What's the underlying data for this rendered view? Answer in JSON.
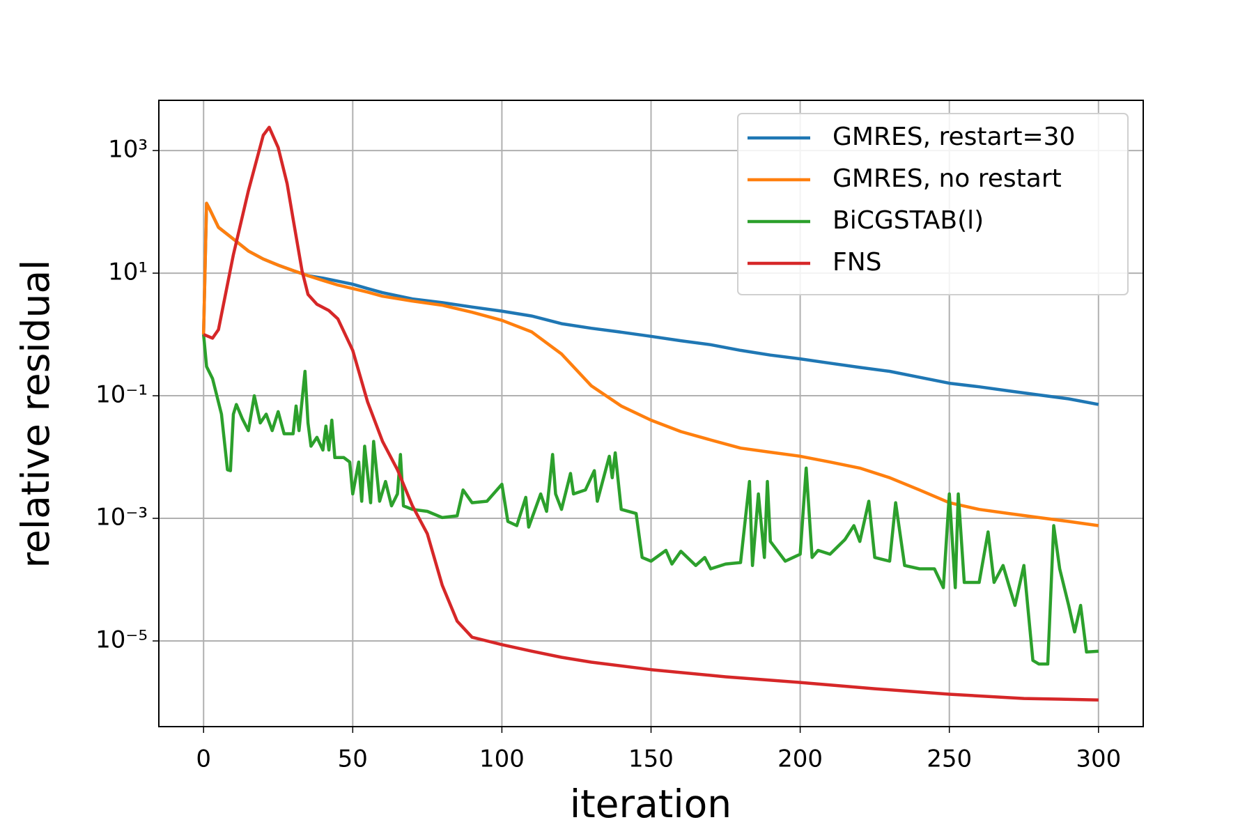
{
  "chart_data": {
    "type": "line",
    "xlabel": "iteration",
    "ylabel": "relative residual",
    "xlim": [
      -15,
      315
    ],
    "ylim": [
      4e-07,
      6600
    ],
    "log_y": true,
    "grid": true,
    "legend": "upper right",
    "xticks": [
      0,
      50,
      100,
      150,
      200,
      250,
      300
    ],
    "yticks": [
      {
        "value": 1000,
        "label": "10³"
      },
      {
        "value": 10,
        "label": "10¹"
      },
      {
        "value": 0.1,
        "label": "10⁻¹"
      },
      {
        "value": 0.001,
        "label": "10⁻³"
      },
      {
        "value": 1e-05,
        "label": "10⁻⁵"
      }
    ],
    "series": [
      {
        "name": "GMRES, restart=30",
        "color": "#1f77b4",
        "x": [
          0,
          1,
          2,
          5,
          10,
          15,
          20,
          25,
          30,
          35,
          40,
          45,
          50,
          55,
          60,
          70,
          80,
          90,
          100,
          110,
          120,
          130,
          140,
          150,
          160,
          170,
          180,
          190,
          200,
          210,
          220,
          230,
          240,
          250,
          260,
          270,
          280,
          290,
          300
        ],
        "values": [
          1,
          138,
          112,
          56,
          36,
          23,
          17,
          13.5,
          11,
          9.1,
          8.3,
          7.4,
          6.6,
          5.6,
          4.8,
          3.8,
          3.3,
          2.8,
          2.4,
          2.0,
          1.5,
          1.26,
          1.09,
          0.93,
          0.79,
          0.68,
          0.55,
          0.46,
          0.4,
          0.34,
          0.29,
          0.25,
          0.2,
          0.16,
          0.14,
          0.12,
          0.103,
          0.089,
          0.072
        ]
      },
      {
        "name": "GMRES, no restart",
        "color": "#ff7f0e",
        "x": [
          0,
          1,
          2,
          5,
          10,
          15,
          20,
          25,
          30,
          35,
          40,
          45,
          50,
          55,
          60,
          70,
          80,
          90,
          100,
          110,
          120,
          130,
          140,
          150,
          160,
          170,
          180,
          190,
          200,
          210,
          220,
          230,
          240,
          250,
          260,
          270,
          280,
          290,
          300
        ],
        "values": [
          1,
          138,
          112,
          56,
          36,
          23,
          17,
          13.5,
          11,
          9.1,
          7.6,
          6.4,
          5.6,
          4.9,
          4.2,
          3.5,
          3.0,
          2.3,
          1.7,
          1.1,
          0.48,
          0.145,
          0.068,
          0.04,
          0.026,
          0.019,
          0.014,
          0.012,
          0.0103,
          0.0083,
          0.0066,
          0.0046,
          0.0029,
          0.0018,
          0.0014,
          0.0012,
          0.00103,
          0.00089,
          0.00076
        ]
      },
      {
        "name": "BiCGSTAB(l)",
        "color": "#2ca02c",
        "x": [
          0,
          1,
          3,
          6,
          8,
          9,
          10,
          11,
          13,
          15,
          17,
          19,
          21,
          23,
          25,
          27,
          30,
          31,
          32,
          34,
          35,
          36,
          38,
          40,
          41,
          42,
          43,
          44,
          47,
          49,
          50,
          52,
          53,
          54,
          56,
          57,
          59,
          61,
          63,
          65,
          66,
          67,
          70,
          75,
          80,
          85,
          87,
          90,
          95,
          100,
          102,
          105,
          108,
          109,
          113,
          115,
          117,
          118,
          120,
          123,
          124,
          128,
          131,
          132,
          136,
          137,
          138,
          140,
          145,
          147,
          150,
          155,
          157,
          160,
          165,
          168,
          170,
          175,
          180,
          183,
          184,
          186,
          188,
          189,
          190,
          195,
          200,
          202,
          204,
          206,
          210,
          215,
          218,
          220,
          223,
          225,
          230,
          232,
          235,
          240,
          245,
          248,
          250,
          252,
          253,
          255,
          260,
          263,
          265,
          268,
          270,
          272,
          275,
          278,
          280,
          283,
          285,
          287,
          290,
          292,
          294,
          296,
          300
        ],
        "values": [
          1,
          0.3,
          0.19,
          0.05,
          0.0062,
          0.006,
          0.05,
          0.072,
          0.042,
          0.027,
          0.1,
          0.036,
          0.05,
          0.027,
          0.055,
          0.024,
          0.024,
          0.068,
          0.027,
          0.25,
          0.036,
          0.015,
          0.021,
          0.013,
          0.032,
          0.013,
          0.04,
          0.0098,
          0.0098,
          0.0083,
          0.0025,
          0.0083,
          0.0019,
          0.015,
          0.0018,
          0.018,
          0.0019,
          0.004,
          0.0016,
          0.0025,
          0.011,
          0.0016,
          0.0014,
          0.0013,
          0.00103,
          0.0011,
          0.0029,
          0.0018,
          0.0019,
          0.0036,
          0.00089,
          0.00076,
          0.0022,
          0.00072,
          0.0025,
          0.0013,
          0.011,
          0.0025,
          0.0014,
          0.0054,
          0.0025,
          0.0029,
          0.006,
          0.0019,
          0.0103,
          0.0046,
          0.0117,
          0.0014,
          0.0012,
          0.00023,
          0.0002,
          0.0003,
          0.00018,
          0.00029,
          0.00017,
          0.00023,
          0.00015,
          0.00018,
          0.00019,
          0.004,
          0.00017,
          0.0025,
          0.00023,
          0.004,
          0.00042,
          0.0002,
          0.00026,
          0.0066,
          0.00023,
          0.0003,
          0.00026,
          0.00045,
          0.00076,
          0.00042,
          0.0019,
          0.00023,
          0.0002,
          0.0018,
          0.00017,
          0.00015,
          0.00015,
          7.4e-05,
          0.0025,
          7.4e-05,
          0.0025,
          9e-05,
          9e-05,
          0.0006,
          9e-05,
          0.00017,
          8e-05,
          3.8e-05,
          0.00017,
          4.8e-06,
          4.2e-06,
          4.2e-06,
          0.00076,
          0.00015,
          3.8e-05,
          1.4e-05,
          3.8e-05,
          6.6e-06,
          6.8e-06
        ]
      },
      {
        "name": "FNS",
        "color": "#d62728",
        "x": [
          0,
          3,
          5,
          10,
          15,
          20,
          22,
          25,
          28,
          30,
          33,
          35,
          38,
          42,
          45,
          50,
          55,
          60,
          65,
          70,
          75,
          80,
          85,
          90,
          95,
          100,
          110,
          120,
          130,
          150,
          175,
          200,
          225,
          250,
          275,
          300
        ],
        "values": [
          1,
          0.87,
          1.2,
          20,
          220,
          1780,
          2400,
          1120,
          290,
          77,
          11,
          4.5,
          3.1,
          2.45,
          1.8,
          0.55,
          0.079,
          0.018,
          0.0062,
          0.0016,
          0.00056,
          8.1e-05,
          2.1e-05,
          1.15e-05,
          1e-05,
          8.7e-06,
          6.8e-06,
          5.4e-06,
          4.5e-06,
          3.4e-06,
          2.6e-06,
          2.1e-06,
          1.66e-06,
          1.35e-06,
          1.15e-06,
          1.09e-06
        ]
      }
    ]
  }
}
